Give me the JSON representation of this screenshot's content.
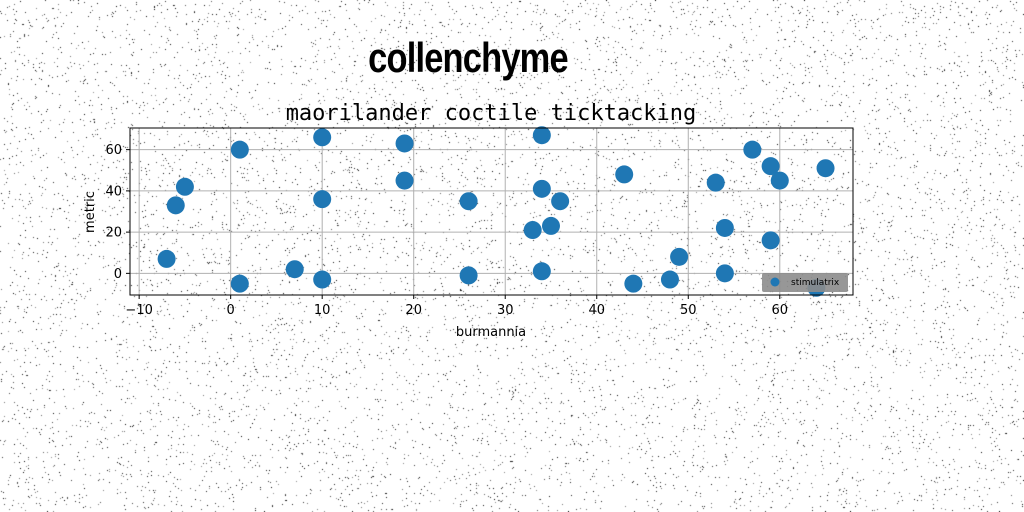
{
  "headline": "collenchyme",
  "chart_data": {
    "type": "scatter",
    "title": "maorilander coctile ticktacking",
    "xlabel": "burmannia",
    "ylabel": "metric",
    "xlim": [
      -11,
      68
    ],
    "ylim": [
      -10.5,
      70.5
    ],
    "xticks": [
      -10,
      0,
      10,
      20,
      30,
      40,
      50,
      60
    ],
    "yticks": [
      0,
      20,
      40,
      60
    ],
    "grid": true,
    "legend_position": "lower-right",
    "colors": {
      "marker": "#1f77b4",
      "grid": "#b0b0b0",
      "legend_bg": "#8c8c8c"
    },
    "series": [
      {
        "name": "stimulatrix",
        "x": [
          -7,
          -6,
          -5,
          1,
          1,
          7,
          10,
          10,
          10,
          19,
          19,
          26,
          26,
          33,
          34,
          34,
          34,
          35,
          36,
          43,
          44,
          48,
          49,
          53,
          54,
          54,
          57,
          59,
          59,
          60,
          64,
          65
        ],
        "y": [
          7,
          33,
          42,
          60,
          -5,
          2,
          66,
          36,
          -3,
          63,
          45,
          35,
          -1,
          21,
          67,
          41,
          1,
          23,
          35,
          48,
          -5,
          -3,
          8,
          44,
          22,
          0,
          60,
          52,
          16,
          45,
          -7,
          51
        ]
      }
    ]
  }
}
